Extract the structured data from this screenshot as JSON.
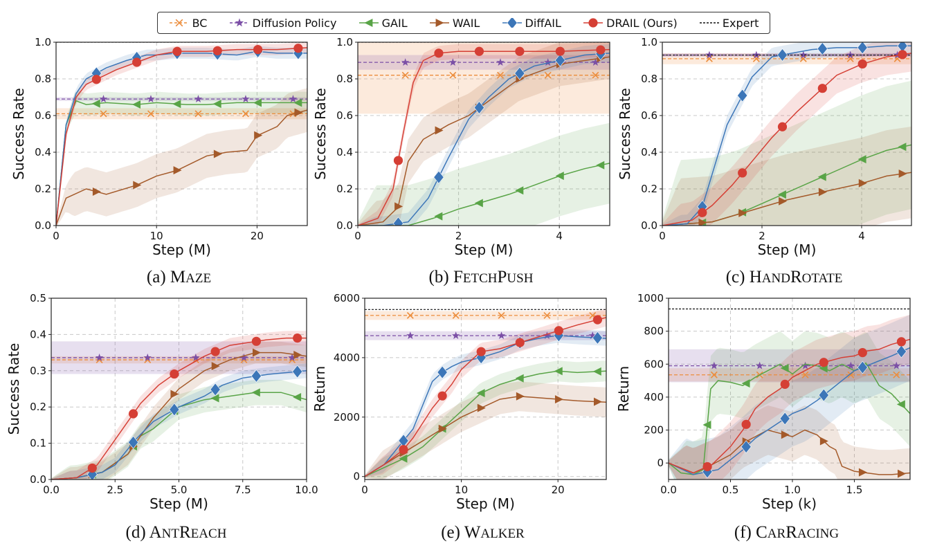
{
  "legend": [
    {
      "name": "BC",
      "color": "#ec8d3c",
      "marker": "x",
      "dash": "4 3"
    },
    {
      "name": "Diffusion Policy",
      "color": "#7b4fa6",
      "marker": "star",
      "dash": "4 3"
    },
    {
      "name": "GAIL",
      "color": "#59a447",
      "marker": "tri-left",
      "dash": ""
    },
    {
      "name": "WAIL",
      "color": "#a45a2a",
      "marker": "tri-right",
      "dash": ""
    },
    {
      "name": "DiffAIL",
      "color": "#3c76b8",
      "marker": "diamond",
      "dash": ""
    },
    {
      "name": "DRAIL (Ours)",
      "color": "#d53f35",
      "marker": "circle",
      "dash": ""
    },
    {
      "name": "Expert",
      "color": "#111111",
      "marker": "none",
      "dash": "3 2"
    }
  ],
  "chart_data": [
    {
      "type": "line",
      "caption": "(a) Maze",
      "xlabel": "Step (M)",
      "ylabel": "Success Rate",
      "xlim": [
        0,
        25
      ],
      "ylim": [
        0,
        1.0
      ],
      "xticks": [
        "0",
        "10",
        "20"
      ],
      "xtick_values": [
        0,
        10,
        20
      ],
      "yticks": [
        "0.0",
        "0.2",
        "0.4",
        "0.6",
        "0.8",
        "1.0"
      ],
      "ytick_values": [
        0,
        0.2,
        0.4,
        0.6,
        0.8,
        1.0
      ],
      "grid": true,
      "expert": 1.0,
      "bc": {
        "value": 0.61,
        "band": 0.03
      },
      "dp": {
        "value": 0.69,
        "band": 0.01
      },
      "series": [
        {
          "name": "GAIL",
          "band": 0.06,
          "x": [
            0,
            1,
            2,
            3,
            5,
            8,
            10,
            13,
            15,
            18,
            20,
            23,
            25
          ],
          "y": [
            0,
            0.55,
            0.68,
            0.66,
            0.67,
            0.66,
            0.67,
            0.66,
            0.66,
            0.67,
            0.67,
            0.67,
            0.67
          ]
        },
        {
          "name": "WAIL",
          "band": 0.12,
          "x": [
            0,
            1,
            3,
            5,
            8,
            10,
            12,
            15,
            17,
            19,
            20,
            22,
            23,
            25
          ],
          "y": [
            0,
            0.15,
            0.2,
            0.17,
            0.22,
            0.27,
            0.3,
            0.38,
            0.4,
            0.41,
            0.49,
            0.54,
            0.6,
            0.63
          ]
        },
        {
          "name": "DiffAIL",
          "band": 0.03,
          "x": [
            0,
            1,
            2,
            3,
            5,
            7,
            9,
            10,
            12,
            15,
            18,
            20,
            22,
            25
          ],
          "y": [
            0,
            0.55,
            0.72,
            0.8,
            0.86,
            0.9,
            0.93,
            0.93,
            0.94,
            0.94,
            0.93,
            0.95,
            0.94,
            0.94
          ]
        },
        {
          "name": "DRAIL (Ours)",
          "band": 0.03,
          "x": [
            0,
            1,
            2,
            3,
            4.5,
            6,
            8.5,
            10,
            12,
            15,
            18,
            20,
            22,
            25
          ],
          "y": [
            0,
            0.5,
            0.7,
            0.77,
            0.81,
            0.85,
            0.9,
            0.93,
            0.95,
            0.95,
            0.96,
            0.96,
            0.96,
            0.97
          ]
        }
      ]
    },
    {
      "type": "line",
      "caption": "(b) FetchPush",
      "xlabel": "Step (M)",
      "ylabel": "Success Rate",
      "xlim": [
        0,
        5
      ],
      "ylim": [
        0,
        1.0
      ],
      "xticks": [
        "0",
        "2",
        "4"
      ],
      "xtick_values": [
        0,
        2,
        4
      ],
      "yticks": [
        "0.0",
        "0.2",
        "0.4",
        "0.6",
        "0.8",
        "1.0"
      ],
      "ytick_values": [
        0,
        0.2,
        0.4,
        0.6,
        0.8,
        1.0
      ],
      "grid": true,
      "expert": 1.0,
      "bc": {
        "value": 0.82,
        "band": 0.21
      },
      "dp": {
        "value": 0.89,
        "band": 0.04
      },
      "series": [
        {
          "name": "GAIL",
          "band": 0.22,
          "x": [
            0,
            1,
            1.5,
            2,
            2.5,
            3,
            3.5,
            4,
            4.5,
            5
          ],
          "y": [
            0,
            0.0,
            0.04,
            0.09,
            0.13,
            0.17,
            0.22,
            0.27,
            0.31,
            0.34
          ]
        },
        {
          "name": "WAIL",
          "band": 0.12,
          "x": [
            0,
            0.5,
            0.8,
            1,
            1.3,
            1.8,
            2.2,
            2.7,
            3.2,
            3.5,
            4,
            4.5,
            5
          ],
          "y": [
            0,
            0.02,
            0.1,
            0.35,
            0.47,
            0.55,
            0.6,
            0.7,
            0.8,
            0.83,
            0.88,
            0.9,
            0.92
          ]
        },
        {
          "name": "DiffAIL",
          "band": 0.05,
          "x": [
            0,
            0.5,
            1,
            1.4,
            1.8,
            2.2,
            2.6,
            3,
            3.5,
            4,
            4.5,
            5
          ],
          "y": [
            0,
            0.0,
            0.02,
            0.15,
            0.37,
            0.58,
            0.7,
            0.8,
            0.87,
            0.9,
            0.93,
            0.94
          ]
        },
        {
          "name": "DRAIL (Ours)",
          "band": 0.04,
          "x": [
            0,
            0.4,
            0.7,
            0.9,
            1.1,
            1.3,
            1.6,
            2,
            2.6,
            3,
            3.5,
            4,
            5
          ],
          "y": [
            0,
            0.04,
            0.2,
            0.5,
            0.78,
            0.9,
            0.94,
            0.95,
            0.95,
            0.95,
            0.95,
            0.95,
            0.96
          ]
        }
      ]
    },
    {
      "type": "line",
      "caption": "(c) HandRotate",
      "xlabel": "Step (M)",
      "ylabel": "Success Rate",
      "xlim": [
        0,
        5
      ],
      "ylim": [
        0,
        1.0
      ],
      "xticks": [
        "0",
        "2",
        "4"
      ],
      "xtick_values": [
        0,
        2,
        4
      ],
      "yticks": [
        "0.0",
        "0.2",
        "0.4",
        "0.6",
        "0.8",
        "1.0"
      ],
      "ytick_values": [
        0,
        0.2,
        0.4,
        0.6,
        0.8,
        1.0
      ],
      "grid": true,
      "expert": 0.93,
      "bc": {
        "value": 0.91,
        "band": 0.03
      },
      "dp": {
        "value": 0.93,
        "band": 0.01
      },
      "series": [
        {
          "name": "GAIL",
          "band": 0.35,
          "x": [
            0,
            1,
            1.5,
            2,
            2.5,
            3,
            3.5,
            4,
            4.5,
            5
          ],
          "y": [
            0,
            0.02,
            0.06,
            0.12,
            0.18,
            0.24,
            0.3,
            0.36,
            0.41,
            0.44
          ]
        },
        {
          "name": "WAIL",
          "band": 0.25,
          "x": [
            0,
            1,
            1.5,
            2,
            2.5,
            3,
            3.5,
            4,
            4.5,
            5
          ],
          "y": [
            0,
            0.02,
            0.06,
            0.1,
            0.14,
            0.17,
            0.2,
            0.23,
            0.27,
            0.29
          ]
        },
        {
          "name": "DiffAIL",
          "band": 0.05,
          "x": [
            0,
            0.5,
            0.8,
            1,
            1.3,
            1.8,
            2.2,
            2.6,
            3,
            3.5,
            4,
            4.5,
            5
          ],
          "y": [
            0,
            0.01,
            0.1,
            0.28,
            0.55,
            0.81,
            0.92,
            0.94,
            0.96,
            0.97,
            0.97,
            0.98,
            0.98
          ]
        },
        {
          "name": "DRAIL (Ours)",
          "band": 0.1,
          "x": [
            0,
            0.6,
            1,
            1.4,
            1.8,
            2.2,
            2.7,
            3.1,
            3.5,
            4,
            4.5,
            5
          ],
          "y": [
            0,
            0.03,
            0.11,
            0.22,
            0.35,
            0.48,
            0.62,
            0.72,
            0.82,
            0.88,
            0.92,
            0.94
          ]
        }
      ]
    },
    {
      "type": "line",
      "caption": "(d) AntReach",
      "xlabel": "Step (M)",
      "ylabel": "Success Rate",
      "xlim": [
        0,
        10
      ],
      "ylim": [
        0,
        0.5
      ],
      "xticks": [
        "0.0",
        "2.5",
        "5.0",
        "7.5",
        "10.0"
      ],
      "xtick_values": [
        0,
        2.5,
        5,
        7.5,
        10
      ],
      "yticks": [
        "0.0",
        "0.1",
        "0.2",
        "0.3",
        "0.4",
        "0.5"
      ],
      "ytick_values": [
        0,
        0.1,
        0.2,
        0.3,
        0.4,
        0.5
      ],
      "grid": true,
      "bc": {
        "value": 0.33,
        "band": 0.01
      },
      "dp": {
        "value": 0.336,
        "band": 0.045
      },
      "series": [
        {
          "name": "GAIL",
          "band": 0.035,
          "x": [
            0,
            1,
            2,
            3,
            3.5,
            4,
            5,
            6,
            7,
            8,
            9,
            10
          ],
          "y": [
            0,
            0.005,
            0.02,
            0.07,
            0.12,
            0.14,
            0.2,
            0.22,
            0.23,
            0.24,
            0.24,
            0.22
          ]
        },
        {
          "name": "WAIL",
          "band": 0.03,
          "x": [
            0,
            1,
            2,
            3,
            4,
            5,
            6,
            7,
            8,
            9,
            10
          ],
          "y": [
            0,
            0.005,
            0.02,
            0.07,
            0.17,
            0.25,
            0.3,
            0.33,
            0.35,
            0.35,
            0.34
          ]
        },
        {
          "name": "DiffAIL",
          "band": 0.02,
          "x": [
            0,
            1,
            2,
            2.5,
            3.3,
            4,
            5,
            6,
            6.7,
            7.5,
            8.5,
            10
          ],
          "y": [
            0,
            0.005,
            0.02,
            0.04,
            0.11,
            0.16,
            0.2,
            0.23,
            0.26,
            0.28,
            0.29,
            0.3
          ]
        },
        {
          "name": "DRAIL (Ours)",
          "band": 0.02,
          "x": [
            0,
            1,
            1.8,
            2.5,
            3.5,
            4.2,
            5,
            6,
            7,
            8.4,
            9.2,
            10
          ],
          "y": [
            0,
            0.005,
            0.04,
            0.11,
            0.21,
            0.26,
            0.3,
            0.34,
            0.37,
            0.385,
            0.39,
            0.39
          ]
        }
      ]
    },
    {
      "type": "line",
      "caption": "(e) Walker",
      "xlabel": "Step (M)",
      "ylabel": "Return",
      "xlim": [
        0,
        25
      ],
      "ylim": [
        -100,
        6000
      ],
      "xticks": [
        "0",
        "10",
        "20"
      ],
      "xtick_values": [
        0,
        10,
        20
      ],
      "yticks": [
        "0",
        "2000",
        "4000",
        "6000"
      ],
      "ytick_values": [
        0,
        2000,
        4000,
        6000
      ],
      "grid": true,
      "expert": 5620,
      "bc": {
        "value": 5420,
        "band": 150
      },
      "dp": {
        "value": 4740,
        "band": 150
      },
      "series": [
        {
          "name": "GAIL",
          "band": 350,
          "x": [
            0,
            2,
            4,
            6,
            8,
            10,
            12,
            14,
            16,
            18,
            20,
            22,
            25
          ],
          "y": [
            0,
            300,
            600,
            1000,
            1600,
            2200,
            2800,
            3100,
            3300,
            3450,
            3550,
            3500,
            3550
          ]
        },
        {
          "name": "WAIL",
          "band": 500,
          "x": [
            0,
            2,
            4,
            6,
            8,
            10,
            12,
            14,
            16,
            18,
            20,
            22,
            25
          ],
          "y": [
            0,
            400,
            800,
            1200,
            1600,
            2000,
            2300,
            2600,
            2700,
            2650,
            2600,
            2550,
            2500
          ]
        },
        {
          "name": "DiffAIL",
          "band": 250,
          "x": [
            0,
            2,
            4,
            5,
            6,
            7,
            8,
            9,
            10,
            12,
            14,
            16,
            18,
            20,
            22,
            25
          ],
          "y": [
            0,
            400,
            1200,
            1600,
            2400,
            3200,
            3500,
            3700,
            3850,
            4000,
            4200,
            4500,
            4650,
            4750,
            4700,
            4650
          ]
        },
        {
          "name": "DRAIL (Ours)",
          "band": 300,
          "x": [
            0,
            2,
            4,
            5,
            6,
            7,
            8,
            9,
            10,
            11,
            12,
            14,
            16,
            18,
            20,
            22,
            25
          ],
          "y": [
            0,
            400,
            900,
            1300,
            1800,
            2300,
            2700,
            3100,
            3600,
            3900,
            4200,
            4300,
            4500,
            4700,
            4900,
            5100,
            5350
          ]
        }
      ]
    },
    {
      "type": "line",
      "caption": "(f) CarRacing",
      "xlabel": "Step (k)",
      "ylabel": "Return",
      "xlim": [
        0,
        1.95
      ],
      "ylim": [
        -100,
        1000
      ],
      "xticks": [
        "0.0",
        "0.5",
        "1.0",
        "1.5"
      ],
      "xtick_values": [
        0,
        0.5,
        1.0,
        1.5
      ],
      "yticks": [
        "0",
        "200",
        "400",
        "600",
        "800",
        "1000"
      ],
      "ytick_values": [
        0,
        200,
        400,
        600,
        800,
        1000
      ],
      "grid": true,
      "expert": 935,
      "bc": {
        "value": 535,
        "band": 40
      },
      "dp": {
        "value": 590,
        "band": 100
      },
      "series": [
        {
          "name": "GAIL",
          "band": 200,
          "x": [
            0,
            0.1,
            0.2,
            0.28,
            0.34,
            0.4,
            0.5,
            0.6,
            0.7,
            0.8,
            0.9,
            1.0,
            1.1,
            1.2,
            1.3,
            1.4,
            1.5,
            1.6,
            1.7,
            1.8,
            1.95
          ],
          "y": [
            0,
            -60,
            -70,
            -40,
            450,
            500,
            490,
            470,
            520,
            560,
            600,
            540,
            600,
            590,
            560,
            600,
            560,
            600,
            470,
            420,
            300
          ]
        },
        {
          "name": "WAIL",
          "band": 150,
          "x": [
            0,
            0.2,
            0.35,
            0.5,
            0.6,
            0.7,
            0.8,
            0.9,
            1.0,
            1.1,
            1.2,
            1.3,
            1.35,
            1.4,
            1.5,
            1.6,
            1.7,
            1.8,
            1.95
          ],
          "y": [
            0,
            -60,
            -10,
            50,
            120,
            160,
            200,
            180,
            160,
            200,
            170,
            100,
            80,
            -20,
            -50,
            -60,
            -70,
            -70,
            -60
          ]
        },
        {
          "name": "DiffAIL",
          "band": 200,
          "x": [
            0,
            0.2,
            0.4,
            0.6,
            0.7,
            0.8,
            0.9,
            1.0,
            1.1,
            1.2,
            1.3,
            1.4,
            1.5,
            1.6,
            1.7,
            1.8,
            1.95
          ],
          "y": [
            0,
            -70,
            -40,
            80,
            150,
            200,
            250,
            300,
            330,
            380,
            440,
            500,
            560,
            590,
            620,
            650,
            700
          ]
        },
        {
          "name": "DRAIL (Ours)",
          "band": 150,
          "x": [
            0,
            0.2,
            0.35,
            0.5,
            0.6,
            0.7,
            0.8,
            0.9,
            1.0,
            1.1,
            1.2,
            1.3,
            1.4,
            1.5,
            1.6,
            1.7,
            1.8,
            1.95
          ],
          "y": [
            0,
            -60,
            -10,
            100,
            200,
            330,
            400,
            450,
            520,
            560,
            600,
            620,
            640,
            650,
            680,
            690,
            720,
            750
          ]
        }
      ]
    }
  ]
}
